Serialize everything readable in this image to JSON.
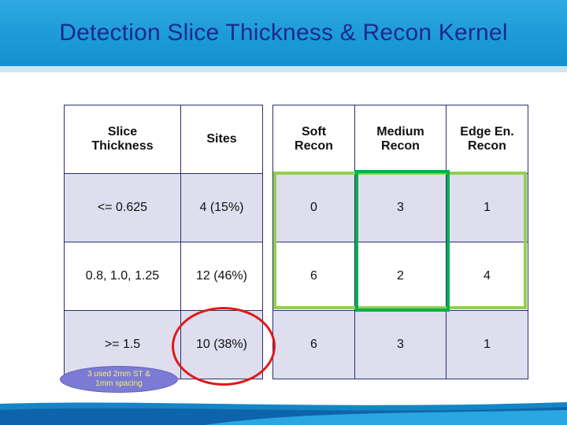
{
  "slide": {
    "title": "Detection Slice Thickness & Recon Kernel"
  },
  "table": {
    "headers": {
      "slice_thickness": "Slice\nThickness",
      "sites": "Sites",
      "soft": "Soft\nRecon",
      "medium": "Medium\nRecon",
      "edge": "Edge En.\nRecon"
    },
    "rows": [
      {
        "slice_thickness": "<= 0.625",
        "sites": "4 (15%)",
        "soft": "0",
        "medium": "3",
        "edge": "1"
      },
      {
        "slice_thickness": "0.8, 1.0, 1.25",
        "sites": "12 (46%)",
        "soft": "6",
        "medium": "2",
        "edge": "4"
      },
      {
        "slice_thickness": ">= 1.5",
        "sites": "10 (38%)",
        "soft": "6",
        "medium": "3",
        "edge": "1"
      }
    ]
  },
  "note": {
    "text": "3 used 2mm ST &\n1mm spacing"
  },
  "colors": {
    "title_bar": "#1b9ad8",
    "title_text": "#1a2a8c",
    "row_shade": "#dedeee",
    "highlight_light_green": "#92d050",
    "highlight_dark_green": "#00b050",
    "circle_red": "#e01818",
    "note_fill": "#7b7bd6",
    "note_text": "#f4f06a"
  }
}
